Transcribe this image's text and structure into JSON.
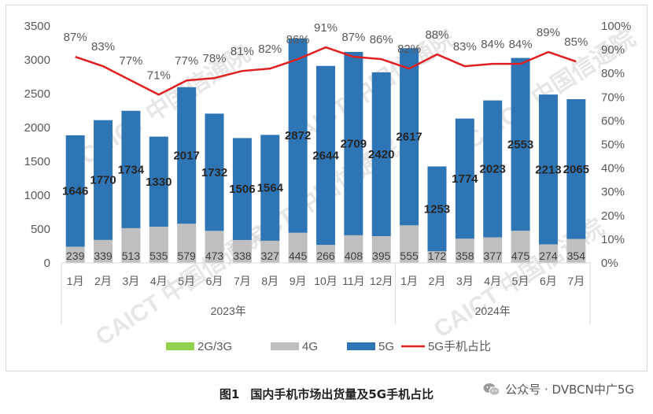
{
  "chart_data": {
    "type": "bar",
    "stacked": true,
    "categories": [
      "1月",
      "2月",
      "3月",
      "4月",
      "5月",
      "6月",
      "7月",
      "8月",
      "9月",
      "10月",
      "11月",
      "12月",
      "1月",
      "2月",
      "3月",
      "4月",
      "5月",
      "6月",
      "7月"
    ],
    "groups": [
      {
        "label": "2023年",
        "from": 0,
        "to": 11
      },
      {
        "label": "2024年",
        "from": 12,
        "to": 18
      }
    ],
    "series": [
      {
        "name": "2G/3G",
        "type": "bar",
        "color": "#92d050",
        "values": [
          0,
          0,
          0,
          0,
          0,
          0,
          0,
          0,
          0,
          0,
          0,
          0,
          0,
          0,
          0,
          0,
          0,
          0,
          0
        ]
      },
      {
        "name": "4G",
        "type": "bar",
        "color": "#bfbfbf",
        "values": [
          239,
          339,
          513,
          535,
          579,
          473,
          338,
          327,
          445,
          266,
          408,
          395,
          555,
          172,
          358,
          377,
          475,
          274,
          354
        ]
      },
      {
        "name": "5G",
        "type": "bar",
        "color": "#2e75b6",
        "values": [
          1646,
          1770,
          1734,
          1330,
          2017,
          1732,
          1506,
          1564,
          2872,
          2644,
          2709,
          2420,
          2617,
          1253,
          1774,
          2023,
          2553,
          2213,
          2065
        ]
      },
      {
        "name": "5G手机占比",
        "type": "line",
        "axis": "right",
        "color": "#e02020",
        "values": [
          87,
          83,
          77,
          71,
          77,
          78,
          81,
          82,
          86,
          91,
          87,
          86,
          82,
          88,
          83,
          84,
          84,
          89,
          85
        ]
      }
    ],
    "y_left": {
      "min": 0,
      "max": 3500,
      "ticks": [
        0,
        500,
        1000,
        1500,
        2000,
        2500,
        3000,
        3500
      ]
    },
    "y_right": {
      "min": 0,
      "max": 100,
      "ticks": [
        "0%",
        "10%",
        "20%",
        "30%",
        "40%",
        "50%",
        "60%",
        "70%",
        "80%",
        "90%",
        "100%"
      ]
    },
    "legend": {
      "position": "bottom",
      "labels": [
        "2G/3G",
        "4G",
        "5G",
        "5G手机占比"
      ]
    },
    "grid": false
  },
  "watermark": "CAICT 中国信通院",
  "caption": {
    "label": "图1",
    "text": "国内手机市场出货量及5G手机占比"
  },
  "credit": {
    "icon": "wechat-icon",
    "text": "公众号 · DVBCN中广5G"
  }
}
